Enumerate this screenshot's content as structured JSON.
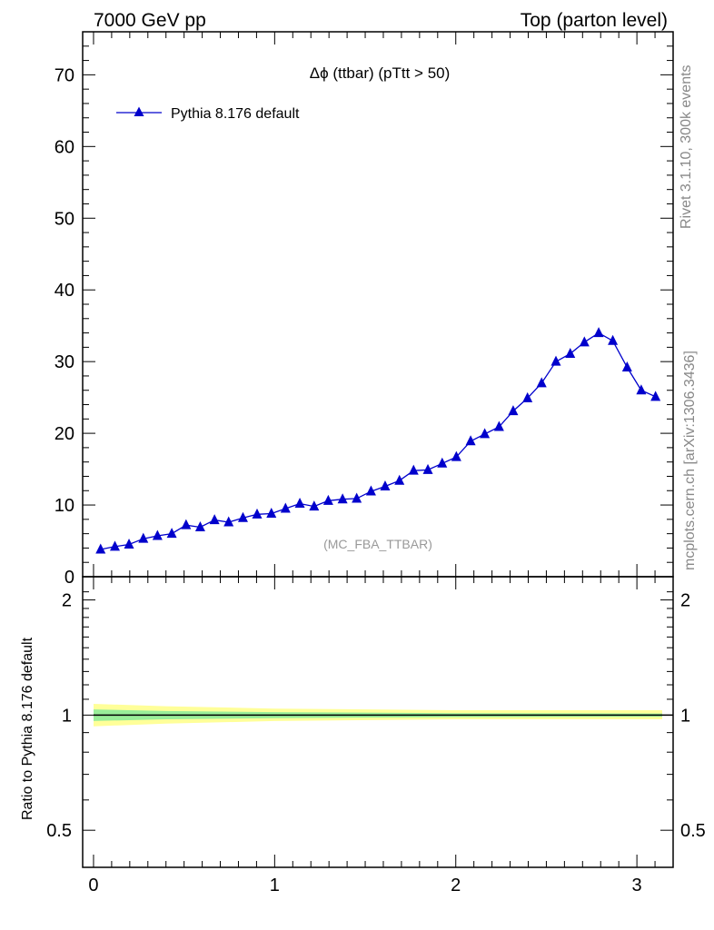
{
  "header": {
    "left": "7000 GeV pp",
    "right": "Top (parton level)"
  },
  "side": {
    "rivet": "Rivet 3.1.10,  300k events",
    "mcplots": "mcplots.cern.ch [arXiv:1306.3436]"
  },
  "colors": {
    "series": "#0000cc",
    "band_outer": "#ffff99",
    "band_inner": "#99ee99"
  },
  "chart_data": [
    {
      "type": "line",
      "title": "Δϕ (ttbar) (pTtt > 50)",
      "watermark": "(MC_FBA_TTBAR)",
      "xlim": [
        -0.06,
        3.2
      ],
      "ylim": [
        0,
        76
      ],
      "yticks": [
        0,
        10,
        20,
        30,
        40,
        50,
        60,
        70
      ],
      "legend_position": "top-left",
      "series": [
        {
          "name": "Pythia 8.176 default",
          "marker": "triangle-up",
          "x": [
            0.039,
            0.118,
            0.196,
            0.275,
            0.353,
            0.432,
            0.511,
            0.589,
            0.668,
            0.746,
            0.825,
            0.903,
            0.982,
            1.06,
            1.139,
            1.218,
            1.296,
            1.375,
            1.453,
            1.532,
            1.61,
            1.689,
            1.767,
            1.846,
            1.925,
            2.003,
            2.082,
            2.16,
            2.239,
            2.317,
            2.396,
            2.474,
            2.553,
            2.632,
            2.71,
            2.789,
            2.867,
            2.946,
            3.024,
            3.103
          ],
          "y": [
            3.8,
            4.2,
            4.5,
            5.3,
            5.7,
            6.0,
            7.2,
            6.9,
            7.9,
            7.6,
            8.2,
            8.7,
            8.8,
            9.5,
            10.2,
            9.8,
            10.6,
            10.8,
            10.9,
            11.9,
            12.6,
            13.4,
            14.8,
            14.9,
            15.8,
            16.7,
            18.9,
            19.9,
            20.9,
            23.1,
            24.9,
            27.0,
            30.0,
            31.1,
            32.7,
            34.0,
            32.9,
            29.2,
            26.0,
            25.1
          ]
        }
      ]
    },
    {
      "type": "area",
      "ylabel": "Ratio to Pythia 8.176 default",
      "xlim": [
        -0.06,
        3.2
      ],
      "ylim": [
        0.4,
        2.3
      ],
      "yscale": "log",
      "xticks": [
        "0",
        "1",
        "2",
        "3"
      ],
      "yticks": [
        "0.5",
        "1",
        "2"
      ],
      "bands": [
        {
          "name": "outer",
          "x": [
            0.0,
            0.4,
            1.0,
            2.0,
            3.14
          ],
          "lower": [
            0.935,
            0.95,
            0.965,
            0.975,
            0.975
          ],
          "upper": [
            1.07,
            1.055,
            1.04,
            1.03,
            1.03
          ]
        },
        {
          "name": "inner",
          "x": [
            0.0,
            0.4,
            1.0,
            2.0,
            3.14
          ],
          "lower": [
            0.965,
            0.975,
            0.982,
            0.988,
            0.99
          ],
          "upper": [
            1.035,
            1.025,
            1.018,
            1.012,
            1.01
          ]
        }
      ],
      "reference": 1.0
    }
  ]
}
